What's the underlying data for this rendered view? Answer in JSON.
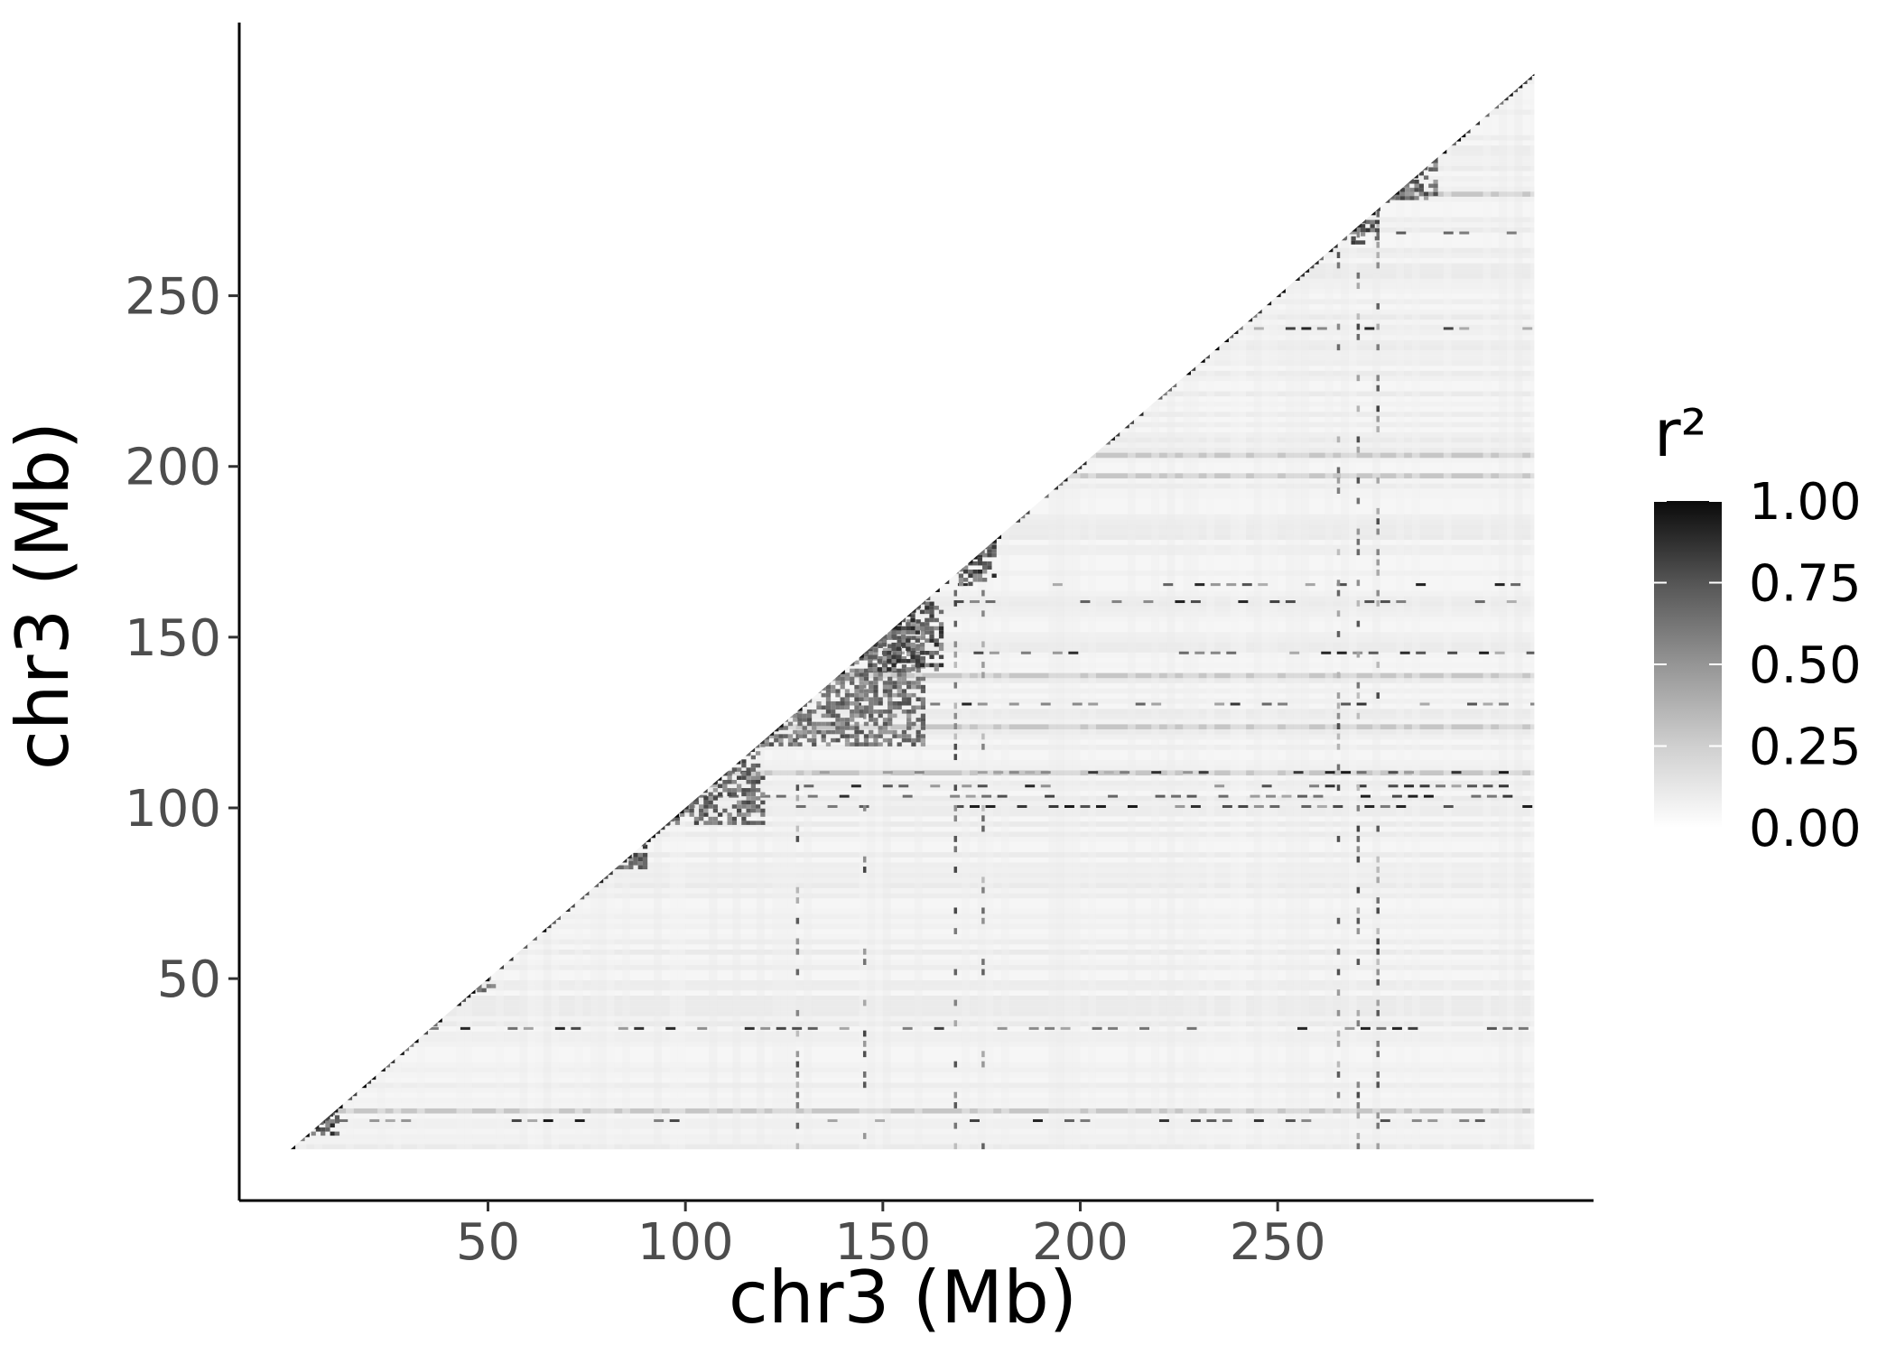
{
  "chart_data": {
    "type": "heatmap",
    "subtype": "LD triangle (upper-left triangle, y >= x)",
    "title": "",
    "xlabel": "chr3 (Mb)",
    "ylabel": "chr3 (Mb)",
    "xlim": [
      -13,
      330
    ],
    "ylim": [
      -15,
      330
    ],
    "x_ticks": [
      50,
      100,
      150,
      200,
      250
    ],
    "x_tick_labels": [
      "50",
      "100",
      "150",
      "200",
      "250"
    ],
    "y_ticks": [
      50,
      100,
      150,
      200,
      250
    ],
    "y_tick_labels": [
      "50",
      "100",
      "150",
      "200",
      "250"
    ],
    "data_extent_mb": [
      0,
      315
    ],
    "grid": false,
    "colorscale": {
      "name": "r²",
      "low_color": "#ffffff",
      "high_color": "#000000",
      "min": 0,
      "max": 1,
      "breaks": [
        0,
        0.25,
        0.5,
        0.75,
        1
      ],
      "break_labels": [
        "0.00",
        "0.25",
        "0.50",
        "0.75",
        "1.00"
      ]
    },
    "legend_position": "right",
    "ld_blocks": [
      {
        "x": [
          4,
          12
        ],
        "y": [
          4,
          14
        ],
        "r2": 0.85
      },
      {
        "x": [
          46,
          52
        ],
        "y": [
          46,
          54
        ],
        "r2": 0.8
      },
      {
        "x": [
          82,
          90
        ],
        "y": [
          82,
          92
        ],
        "r2": 0.8
      },
      {
        "x": [
          95,
          120
        ],
        "y": [
          95,
          118
        ],
        "r2": 0.75
      },
      {
        "x": [
          120,
          160
        ],
        "y": [
          118,
          155
        ],
        "r2": 0.7
      },
      {
        "x": [
          145,
          165
        ],
        "y": [
          140,
          160
        ],
        "r2": 0.85
      },
      {
        "x": [
          168,
          178
        ],
        "y": [
          165,
          178
        ],
        "r2": 0.85
      },
      {
        "x": [
          265,
          275
        ],
        "y": [
          265,
          272
        ],
        "r2": 0.8
      },
      {
        "x": [
          275,
          290
        ],
        "y": [
          278,
          292
        ],
        "r2": 0.75
      }
    ],
    "dark_bands_y": [
      8,
      35,
      100,
      103,
      106,
      110,
      130,
      145,
      160,
      165,
      240,
      268
    ],
    "dark_bands_x": [
      128,
      145,
      168,
      175,
      265,
      270,
      275
    ]
  }
}
